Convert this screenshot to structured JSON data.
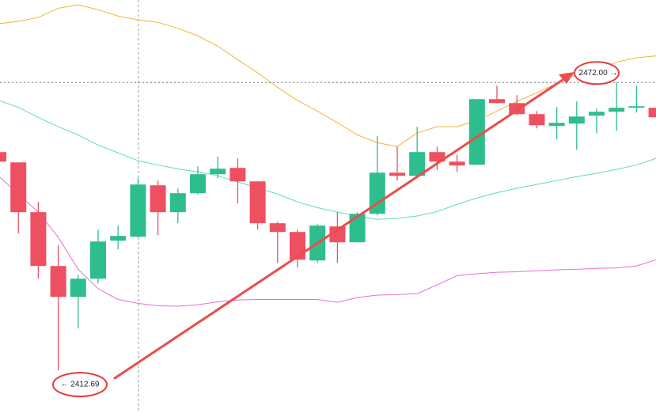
{
  "chart_data": {
    "type": "candlestick",
    "x": [
      null,
      null,
      null,
      null,
      null,
      null,
      null,
      null,
      null,
      null,
      null,
      null,
      null,
      null,
      null,
      null,
      null,
      null,
      null,
      null,
      null,
      null,
      null,
      null,
      null,
      null,
      null,
      null,
      null,
      null,
      null,
      null,
      null,
      null
    ],
    "open": [
      2457.66,
      2455.54,
      2445.28,
      2434.19,
      2427.83,
      2431.58,
      2439.41,
      2440.22,
      2450.82,
      2445.28,
      2449.19,
      2453.1,
      2454.4,
      2451.63,
      2443.0,
      2441.2,
      2435.33,
      2442.34,
      2439.08,
      2444.95,
      2453.42,
      2452.77,
      2457.66,
      2455.7,
      2455.05,
      2468.58,
      2467.76,
      2465.48,
      2463.04,
      2463.53,
      2465.16,
      2465.97,
      2466.79,
      2466.79
    ],
    "high": [
      2457.99,
      2455.54,
      2447.4,
      2438.43,
      2432.39,
      2441.69,
      2442.51,
      2452.28,
      2451.79,
      2450.17,
      2454.73,
      2456.68,
      2456.36,
      2451.63,
      2443.32,
      2441.69,
      2442.83,
      2445.28,
      2445.28,
      2460.92,
      2458.8,
      2462.87,
      2458.8,
      2457.17,
      2468.58,
      2471.35,
      2469.39,
      2466.13,
      2466.95,
      2468.09,
      2466.62,
      2472.0,
      2471.35,
      2467.11
    ],
    "low": [
      2455.54,
      2440.88,
      2431.58,
      2412.69,
      2421.31,
      2430.6,
      2437.61,
      2440.06,
      2440.55,
      2443.0,
      2448.86,
      2452.28,
      2447.07,
      2441.69,
      2434.84,
      2433.86,
      2434.84,
      2434.84,
      2439.08,
      2444.62,
      2451.79,
      2452.28,
      2453.91,
      2453.59,
      2455.05,
      2467.76,
      2465.32,
      2462.55,
      2460.27,
      2458.15,
      2461.57,
      2462.06,
      2465.81,
      2464.83
    ],
    "close": [
      2455.7,
      2445.28,
      2434.19,
      2427.83,
      2431.58,
      2439.24,
      2440.39,
      2450.98,
      2445.28,
      2449.19,
      2453.1,
      2454.24,
      2451.63,
      2443.0,
      2441.2,
      2435.49,
      2442.51,
      2439.08,
      2444.95,
      2453.42,
      2452.77,
      2457.66,
      2455.7,
      2454.89,
      2468.58,
      2467.76,
      2465.48,
      2463.2,
      2463.69,
      2464.99,
      2465.97,
      2466.79,
      2467.11,
      2464.83
    ],
    "up_color": "#2ebd8c",
    "down_color": "#ef5061",
    "bands": [
      {
        "color": "#f5b335",
        "values": [
          2484.1,
          2484.6,
          2485.4,
          2487.3,
          2488.0,
          2487.0,
          2485.7,
          2484.9,
          2484.4,
          2483.2,
          2481.6,
          2479.5,
          2476.7,
          2474.0,
          2471.0,
          2468.3,
          2466.1,
          2463.7,
          2461.2,
          2459.6,
          2458.8,
          2461.6,
          2462.9,
          2462.9,
          2464.2,
          2466.1,
          2468.1,
          2469.9,
          2471.8,
          2473.8,
          2474.6,
          2476.2,
          2477.1,
          2477.5
        ]
      },
      {
        "color": "#5fd8c0",
        "values": [
          2468.3,
          2466.9,
          2464.8,
          2462.9,
          2461.2,
          2459.1,
          2457.5,
          2455.9,
          2455.0,
          2454.2,
          2453.6,
          2452.8,
          2451.5,
          2450.3,
          2449.0,
          2447.4,
          2446.2,
          2445.3,
          2444.5,
          2443.8,
          2444.0,
          2444.5,
          2445.4,
          2446.9,
          2448.2,
          2449.3,
          2450.2,
          2451.0,
          2451.8,
          2452.6,
          2453.3,
          2454.1,
          2455.0,
          2456.4
        ]
      },
      {
        "color": "#e86fd0",
        "values": [
          2452.8,
          2449.0,
          2445.3,
          2440.1,
          2433.5,
          2429.5,
          2427.3,
          2426.5,
          2426.0,
          2425.9,
          2426.2,
          2426.8,
          2427.2,
          2427.3,
          2427.3,
          2427.3,
          2427.3,
          2426.7,
          2427.7,
          2428.2,
          2428.3,
          2428.5,
          2430.3,
          2432.2,
          2432.6,
          2432.9,
          2433.0,
          2433.2,
          2433.4,
          2433.5,
          2433.7,
          2433.8,
          2434.2,
          2435.5
        ]
      }
    ],
    "ylim": [
      2403.9,
      2489.0
    ],
    "annotations": [
      {
        "value": 2412.69,
        "label": "← 2412.69"
      },
      {
        "value": 2472,
        "label": "2472.00 →"
      }
    ]
  }
}
